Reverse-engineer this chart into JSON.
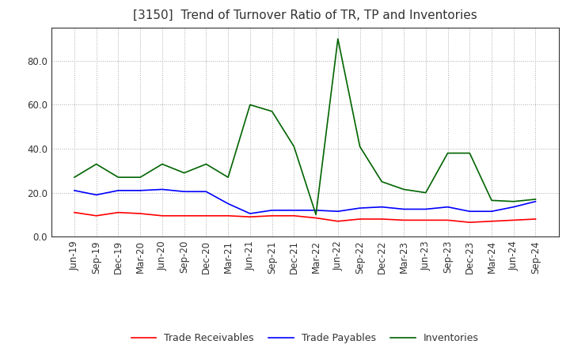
{
  "title": "[3150]  Trend of Turnover Ratio of TR, TP and Inventories",
  "title_fontsize": 11,
  "ylim": [
    0.0,
    95
  ],
  "yticks": [
    0.0,
    20.0,
    40.0,
    60.0,
    80.0
  ],
  "background_color": "#ffffff",
  "grid_color": "#aaaaaa",
  "x_labels": [
    "Jun-19",
    "Sep-19",
    "Dec-19",
    "Mar-20",
    "Jun-20",
    "Sep-20",
    "Dec-20",
    "Mar-21",
    "Jun-21",
    "Sep-21",
    "Dec-21",
    "Mar-22",
    "Jun-22",
    "Sep-22",
    "Dec-22",
    "Mar-23",
    "Jun-23",
    "Sep-23",
    "Dec-23",
    "Mar-24",
    "Jun-24",
    "Sep-24"
  ],
  "trade_receivables": [
    11.0,
    9.5,
    11.0,
    10.5,
    9.5,
    9.5,
    9.5,
    9.5,
    9.0,
    9.5,
    9.5,
    8.5,
    7.0,
    8.0,
    8.0,
    7.5,
    7.5,
    7.5,
    6.5,
    7.0,
    7.5,
    8.0
  ],
  "trade_payables": [
    21.0,
    19.0,
    21.0,
    21.0,
    21.5,
    20.5,
    20.5,
    15.0,
    10.5,
    12.0,
    12.0,
    12.0,
    11.5,
    13.0,
    13.5,
    12.5,
    12.5,
    13.5,
    11.5,
    11.5,
    13.5,
    16.0
  ],
  "inventories": [
    27.0,
    33.0,
    27.0,
    27.0,
    33.0,
    29.0,
    33.0,
    27.0,
    60.0,
    57.0,
    41.0,
    10.0,
    90.0,
    41.0,
    25.0,
    21.5,
    20.0,
    38.0,
    38.0,
    16.5,
    16.0,
    17.0
  ],
  "line_colors": {
    "trade_receivables": "#ff0000",
    "trade_payables": "#0000ff",
    "inventories": "#006400"
  },
  "line_width": 1.2,
  "legend_labels": [
    "Trade Receivables",
    "Trade Payables",
    "Inventories"
  ],
  "legend_fontsize": 9,
  "tick_fontsize": 8.5
}
